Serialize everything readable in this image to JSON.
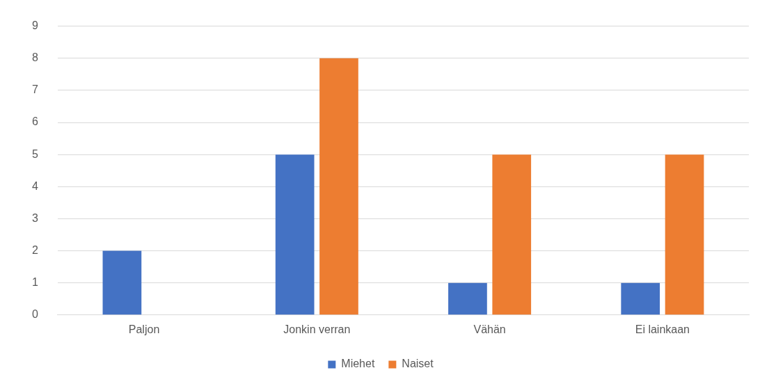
{
  "chart_data": {
    "type": "bar",
    "categories": [
      "Paljon",
      "Jonkin verran",
      "Vähän",
      "Ei lainkaan"
    ],
    "series": [
      {
        "name": "Miehet",
        "color": "#4472c4",
        "values": [
          2,
          5,
          1,
          1
        ]
      },
      {
        "name": "Naiset",
        "color": "#ed7d31",
        "values": [
          0,
          8,
          5,
          5
        ]
      }
    ],
    "ylim": [
      0,
      9
    ],
    "yticks": [
      0,
      1,
      2,
      3,
      4,
      5,
      6,
      7,
      8,
      9
    ],
    "grid": "y",
    "legend": "bottom"
  }
}
